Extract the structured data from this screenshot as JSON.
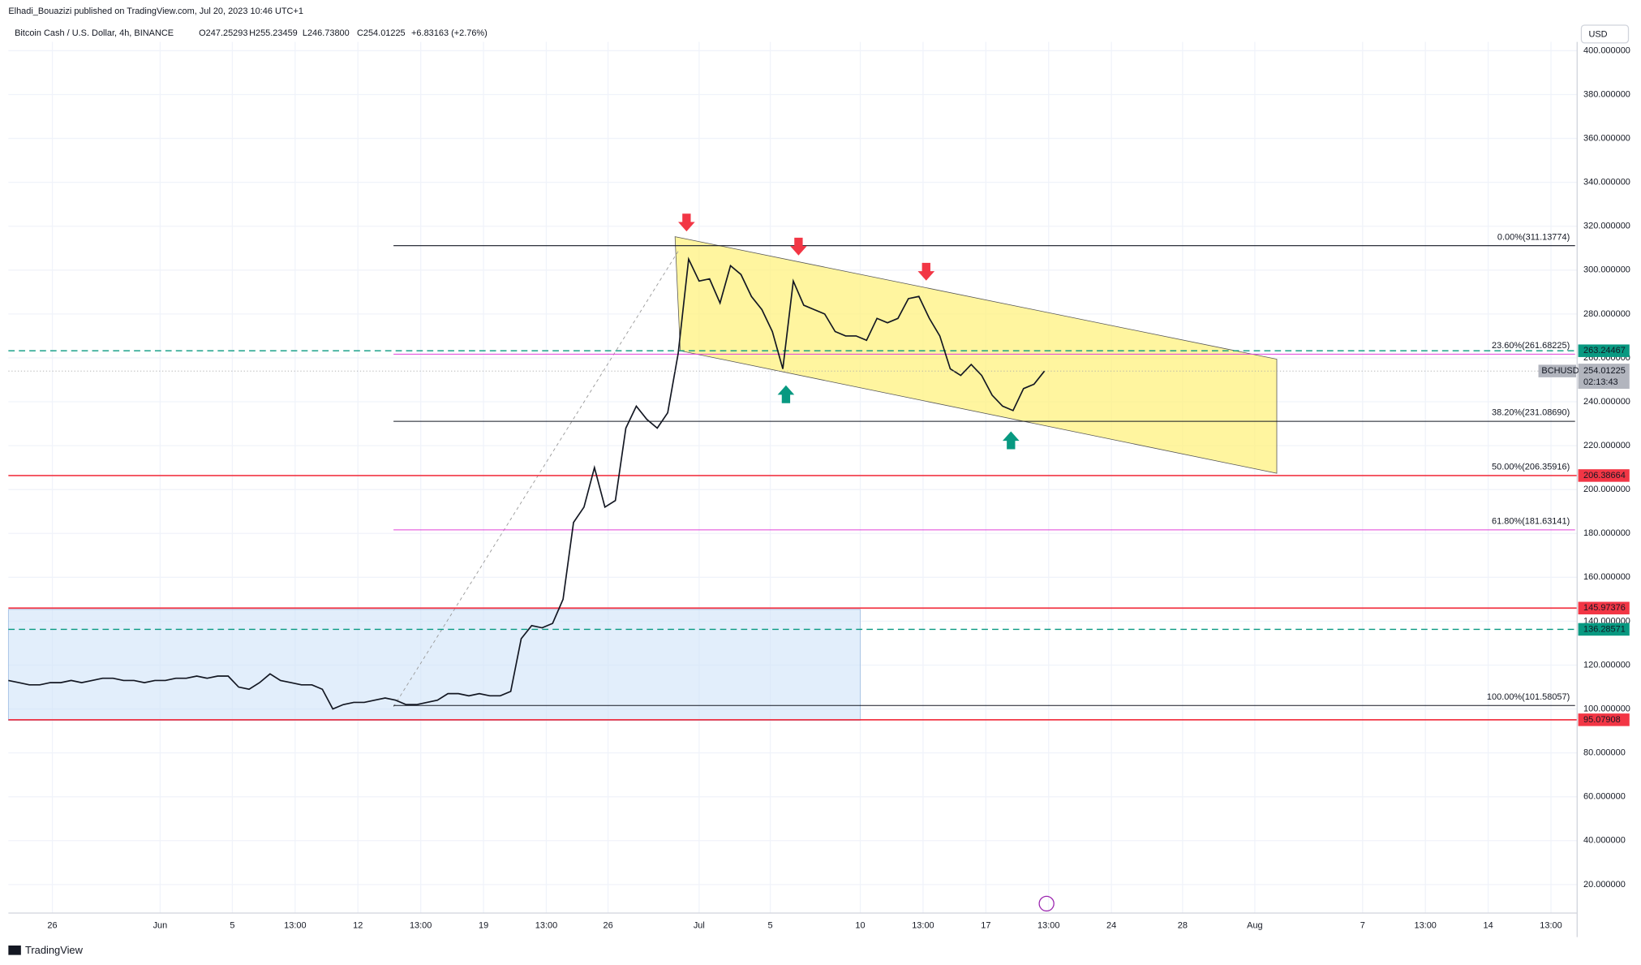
{
  "header": {
    "publisher": "Elhadi_Bouazizi published on TradingView.com, Jul 20, 2023 10:46 UTC+1",
    "symbol": "Bitcoin Cash / U.S. Dollar, 4h, BINANCE",
    "open": "O247.25293",
    "high": "H255.23459",
    "low": "L246.73800",
    "close": "C254.01225",
    "change": "+6.83163 (+2.76%)",
    "currency": "USD",
    "footer": "TradingView"
  },
  "chart_data": {
    "type": "line",
    "series": [
      {
        "name": "BCHUSD",
        "color": "#131722",
        "values": [
          113,
          112,
          111,
          111,
          112,
          112,
          113,
          112,
          113,
          114,
          114,
          113,
          113,
          112,
          113,
          113,
          114,
          114,
          115,
          114,
          115,
          115,
          110,
          109,
          112,
          116,
          113,
          112,
          111,
          111,
          109,
          100,
          102,
          103,
          103,
          104,
          105,
          104,
          102,
          102,
          103,
          104,
          107,
          107,
          106,
          107,
          106,
          106,
          108,
          132,
          138,
          137,
          139,
          150,
          185,
          192,
          210,
          192,
          195,
          228,
          238,
          232,
          228,
          235,
          262,
          305,
          295,
          296,
          285,
          302,
          298,
          288,
          282,
          272,
          255,
          295,
          284,
          282,
          280,
          272,
          270,
          270,
          268,
          278,
          276,
          278,
          287,
          288,
          278,
          270,
          255,
          252,
          257,
          252,
          243,
          238,
          236,
          246,
          248,
          254
        ]
      }
    ],
    "last_price": 254.01225,
    "countdown": "02:13:43",
    "x_labels": [
      "26",
      "Jun",
      "5",
      "13:00",
      "12",
      "13:00",
      "19",
      "13:00",
      "26",
      "Jul",
      "5",
      "10",
      "13:00",
      "17",
      "13:00",
      "24",
      "28",
      "Aug",
      "7",
      "13:00",
      "14",
      "13:00"
    ],
    "ylim": [
      7,
      404
    ],
    "yticks": [
      {
        "value": 20,
        "label": "20.000000"
      },
      {
        "value": 40,
        "label": "40.000000"
      },
      {
        "value": 60,
        "label": "60.000000"
      },
      {
        "value": 80,
        "label": "80.000000"
      },
      {
        "value": 100,
        "label": "100.000000"
      },
      {
        "value": 120,
        "label": "120.000000"
      },
      {
        "value": 140,
        "label": "140.000000"
      },
      {
        "value": 160,
        "label": "160.000000"
      },
      {
        "value": 180,
        "label": "180.000000"
      },
      {
        "value": 200,
        "label": "200.000000"
      },
      {
        "value": 220,
        "label": "220.000000"
      },
      {
        "value": 240,
        "label": "240.000000"
      },
      {
        "value": 260,
        "label": "260.000000"
      },
      {
        "value": 280,
        "label": "280.000000"
      },
      {
        "value": 300,
        "label": "300.000000"
      },
      {
        "value": 320,
        "label": "320.000000"
      },
      {
        "value": 340,
        "label": "340.000000"
      },
      {
        "value": 360,
        "label": "360.000000"
      },
      {
        "value": 380,
        "label": "380.000000"
      },
      {
        "value": 400,
        "label": "400.000000"
      }
    ],
    "grid": true,
    "levels": [
      {
        "value": 263.24467,
        "color": "#089981",
        "style": "dashed"
      },
      {
        "value": 206.38664,
        "color": "#f23645",
        "style": "solid"
      },
      {
        "value": 145.97376,
        "color": "#f23645",
        "style": "solid"
      },
      {
        "value": 136.28571,
        "color": "#089981",
        "style": "dashed"
      },
      {
        "value": 95.07908,
        "color": "#f23645",
        "style": "solid"
      }
    ],
    "fib_levels": [
      {
        "label": "0.00%(311.13774)",
        "value": 311.13774,
        "color": "#131722"
      },
      {
        "label": "23.60%(261.68225)",
        "value": 261.68225,
        "color": "#e040d8"
      },
      {
        "label": "38.20%(231.08690)",
        "value": 231.0869,
        "color": "#131722"
      },
      {
        "label": "50.00%(206.35916)",
        "value": 206.35916,
        "color": "#131722"
      },
      {
        "label": "61.80%(181.63141)",
        "value": 181.63141,
        "color": "#e040d8"
      },
      {
        "label": "100.00%(101.58057)",
        "value": 101.58057,
        "color": "#131722"
      }
    ]
  }
}
